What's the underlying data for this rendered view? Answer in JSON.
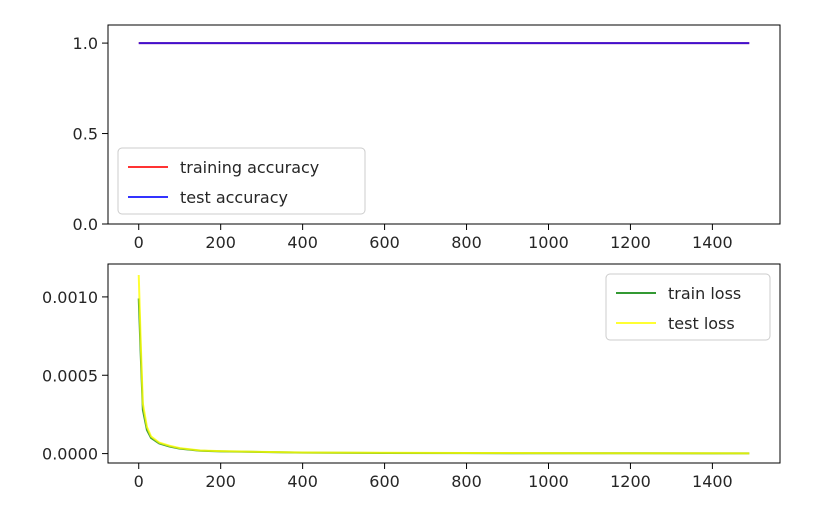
{
  "chart_data": [
    {
      "type": "line",
      "title": "",
      "xlabel": "",
      "ylabel": "",
      "xlim": [
        -75,
        1565
      ],
      "ylim": [
        0,
        1.1
      ],
      "xticks": [
        0,
        200,
        400,
        600,
        800,
        1000,
        1200,
        1400
      ],
      "xtick_labels": [
        "0",
        "200",
        "400",
        "600",
        "800",
        "1000",
        "1200",
        "1400"
      ],
      "yticks": [
        0.0,
        0.5,
        1.0
      ],
      "ytick_labels": [
        "0.0",
        "0.5",
        "1.0"
      ],
      "grid": false,
      "legend_position": "lower-left",
      "series": [
        {
          "name": "training accuracy",
          "color": "#ff0000",
          "x": [
            0,
            1490
          ],
          "y": [
            1.0,
            1.0
          ]
        },
        {
          "name": "test accuracy",
          "color": "#0000ff",
          "x": [
            0,
            1490
          ],
          "y": [
            1.0,
            1.0
          ]
        }
      ]
    },
    {
      "type": "line",
      "title": "",
      "xlabel": "",
      "ylabel": "",
      "xlim": [
        -75,
        1565
      ],
      "ylim": [
        -6e-05,
        0.00121
      ],
      "xticks": [
        0,
        200,
        400,
        600,
        800,
        1000,
        1200,
        1400
      ],
      "xtick_labels": [
        "0",
        "200",
        "400",
        "600",
        "800",
        "1000",
        "1200",
        "1400"
      ],
      "yticks": [
        0.0,
        0.0005,
        0.001
      ],
      "ytick_labels": [
        "0.0000",
        "0.0005",
        "0.0010"
      ],
      "grid": false,
      "legend_position": "upper-right",
      "series": [
        {
          "name": "train loss",
          "color": "#008000",
          "x": [
            0,
            5,
            10,
            20,
            30,
            50,
            75,
            100,
            150,
            200,
            300,
            400,
            600,
            800,
            1000,
            1200,
            1400,
            1490
          ],
          "y": [
            0.00099,
            0.00062,
            0.00028,
            0.00015,
            0.0001,
            6.5e-05,
            4.5e-05,
            3.2e-05,
            1.8e-05,
            1.4e-05,
            1e-05,
            6e-06,
            4e-06,
            3e-06,
            2e-06,
            2e-06,
            1.5e-06,
            1.2e-06
          ]
        },
        {
          "name": "test loss",
          "color": "#ffff00",
          "x": [
            0,
            5,
            10,
            20,
            30,
            50,
            75,
            100,
            150,
            200,
            300,
            400,
            600,
            800,
            1000,
            1200,
            1400,
            1490
          ],
          "y": [
            0.00114,
            0.0007,
            0.00032,
            0.00017,
            0.00011,
            7e-05,
            5e-05,
            3.5e-05,
            2e-05,
            1.6e-05,
            1.1e-05,
            7e-06,
            5e-06,
            4e-06,
            3e-06,
            2e-06,
            2e-06,
            1.5e-06
          ]
        }
      ]
    }
  ]
}
